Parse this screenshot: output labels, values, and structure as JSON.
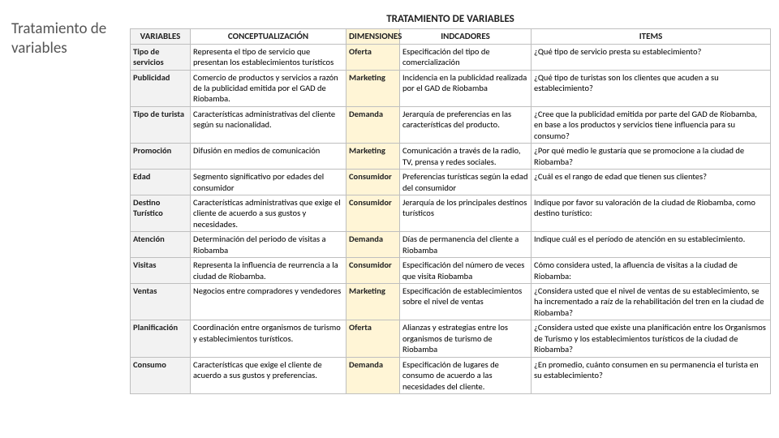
{
  "sideTitle": "Tratamiento de variables",
  "caption": "TRATAMIENTO DE VARIABLES",
  "headers": {
    "c1": "VARIABLES",
    "c2": "CONCEPTUALIZACIÓN",
    "c3": "DIMENSIONES",
    "c4": "INDCADORES",
    "c5": "ITEMS"
  },
  "rows": [
    {
      "c1": "Tipo de servicios",
      "c2": "Representa el tipo de servicio que presentan los establecimientos turísticos",
      "c3": "Oferta",
      "c4": "Especificación del tipo de comercialización",
      "c5": "¿Qué tipo de servicio presta su establecimiento?"
    },
    {
      "c1": "Publicidad",
      "c2": "Comercio de productos y servicios a razón de la publicidad emitida por el GAD de Riobamba.",
      "c3": "Marketing",
      "c4": "Incidencia en la publicidad realizada por el GAD de Riobamba",
      "c5": "¿Qué tipo de turistas son los clientes que acuden a su establecimiento?"
    },
    {
      "c1": "Tipo de turista",
      "c2": "Características administrativas del cliente según su nacionalidad.",
      "c3": "Demanda",
      "c4": "Jerarquía de preferencias en las características del producto.",
      "c5": "¿Cree que la publicidad emitida por parte del GAD de Riobamba, en base a los productos y servicios tiene influencia para su consumo?"
    },
    {
      "c1": "Promoción",
      "c2": "Difusión en medios de comunicación",
      "c3": "Marketing",
      "c4": "Comunicación a través de la radio, TV, prensa y redes sociales.",
      "c5": "¿Por qué medio le gustaría que se promocione a la ciudad de Riobamba?"
    },
    {
      "c1": "Edad",
      "c2": "Segmento significativo por edades del consumidor",
      "c3": "Consumidor",
      "c4": "Preferencias turísticas según la edad del consumidor",
      "c5": "¿Cuál es el rango de edad que tienen sus clientes?"
    },
    {
      "c1": "Destino Turístico",
      "c2": "Características administrativas que exige el cliente de acuerdo a sus gustos y necesidades.",
      "c3": "Consumidor",
      "c4": "Jerarquía de los principales destinos turísticos",
      "c5": "Indique por favor su valoración de la ciudad de Riobamba, como destino turístico:"
    },
    {
      "c1": "Atención",
      "c2": "Determinación del periodo de visitas a Riobamba",
      "c3": "Demanda",
      "c4": "Días de permanencia del cliente a Riobamba",
      "c5": "Indique cuál es el período de atención en su establecimiento."
    },
    {
      "c1": "Visitas",
      "c2": "Representa la influencia de reurrencia a la ciudad de Riobamba.",
      "c3": "Consumidor",
      "c4": "Especificación del número de veces que visita Riobamba",
      "c5": "Cómo considera usted, la afluencia de visitas a la ciudad de Riobamba:"
    },
    {
      "c1": "Ventas",
      "c2": "Negocios entre compradores y vendedores",
      "c3": "Marketing",
      "c4": "Especificación de establecimientos sobre el nivel de ventas",
      "c5": "¿Considera usted que el nivel de ventas de su establecimiento, se ha incrementado a raíz de la rehabilitación del tren en la ciudad de Riobamba?"
    },
    {
      "c1": "Planificación",
      "c2": "Coordinación entre organismos de turismo y establecimientos turísticos.",
      "c3": "Oferta",
      "c4": "Alianzas y estrategias entre los organismos de turismo de Riobamba",
      "c5": "¿Considera usted que existe una planificación entre los Organismos de Turismo y los establecimientos turísticos de la ciudad de Riobamba?"
    },
    {
      "c1": "Consumo",
      "c2": "Características que exige el cliente de acuerdo a sus gustos y preferencias.",
      "c3": "Demanda",
      "c4": "Especificación de lugares de consumo de acuerdo a las necesidades del cliente.",
      "c5": "¿En promedio, cuánto consumen en su permanencia el turista en su establecimiento?"
    }
  ],
  "style": {
    "bg": "#ffffff",
    "grid": "#bfbfbf",
    "varBg": "#f2f2f2",
    "dimBg": "#fff5d6",
    "titleColor": "#555555",
    "textColor": "#222222",
    "captionSize": 13,
    "headerSize": 11,
    "cellSize": 10.5
  }
}
